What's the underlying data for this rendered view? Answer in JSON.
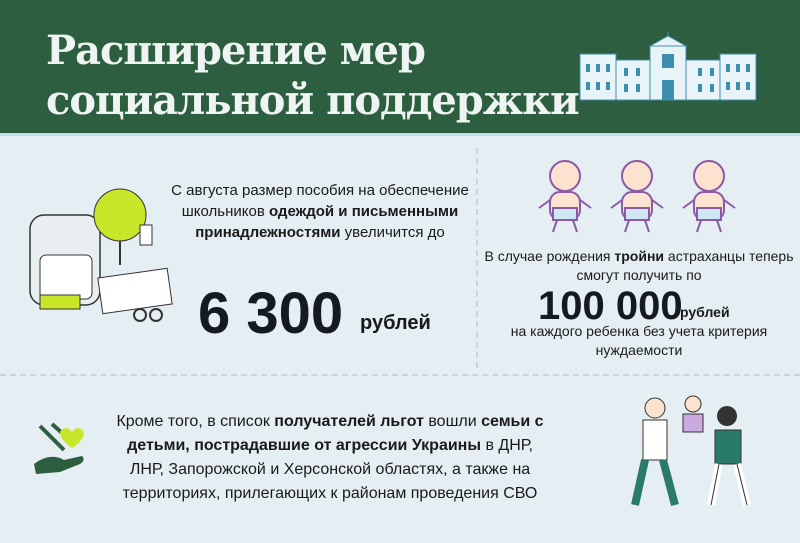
{
  "header": {
    "title_line1": "Расширение мер",
    "title_line2": "социальной поддержки"
  },
  "school": {
    "text": [
      {
        "t": "С августа размер пособия на обеспечение школьников "
      },
      {
        "t": "одеждой и письменными принадлежностями",
        "b": true
      },
      {
        "t": " увеличится до"
      }
    ],
    "amount": "6 300",
    "unit": "рублей"
  },
  "triplets": {
    "text": [
      {
        "t": "В случае рождения "
      },
      {
        "t": "тройни",
        "b": true
      },
      {
        "t": " астраханцы теперь смогут получить по"
      }
    ],
    "amount": "100 000",
    "unit": "рублей",
    "note": "на каждого ребенка без учета критерия нуждаемости"
  },
  "families": {
    "text": [
      {
        "t": "Кроме того, в список "
      },
      {
        "t": "получателей льгот",
        "b": true
      },
      {
        "t": " вошли "
      },
      {
        "t": "семьи с детьми, пострадавшие от агрессии Украины",
        "b": true
      },
      {
        "t": " в ДНР, ЛНР, Запорожской и Херсонской областях, а также на территориях, прилегающих к районам проведения СВО"
      }
    ]
  },
  "colors": {
    "header": "#2d5e3f",
    "background": "#e5eef2",
    "accent_lime": "#c8e62a",
    "baby_outline": "#8a5aa6"
  }
}
